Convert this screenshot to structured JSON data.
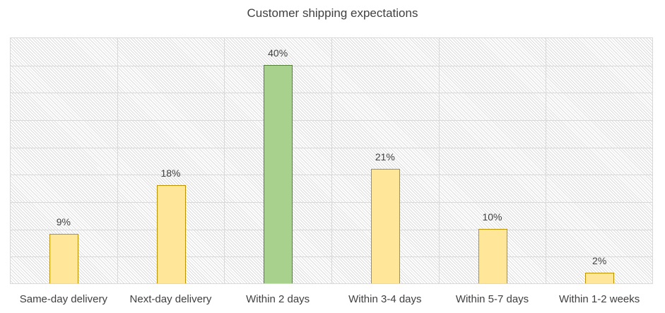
{
  "chart_data": {
    "type": "bar",
    "title": "Customer shipping expectations",
    "xlabel": "",
    "ylabel": "",
    "categories": [
      "Same-day delivery",
      "Next-day delivery",
      "Within 2 days",
      "Within 3-4 days",
      "Within 5-7 days",
      "Within 1-2 weeks"
    ],
    "values": [
      9,
      18,
      40,
      21,
      10,
      2
    ],
    "data_labels": [
      "9%",
      "18%",
      "40%",
      "21%",
      "10%",
      "2%"
    ],
    "unit": "%",
    "ylim": [
      0,
      45
    ],
    "y_gridline_step": 5,
    "grid": true,
    "y_axis_visible": false,
    "legend": null,
    "highlight_index": 2,
    "colors": {
      "bar_fill": "#ffe699",
      "bar_border": "#bf9000",
      "highlight_fill": "#a9d18e",
      "highlight_border": "#548235",
      "gridline": "#d9d9d9",
      "text": "#404040"
    }
  }
}
